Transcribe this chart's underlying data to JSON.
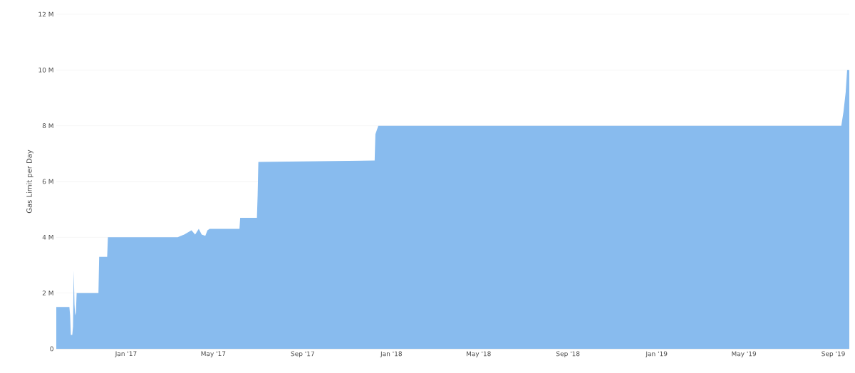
{
  "chart_data": {
    "type": "area",
    "ylabel": "Gas Limit per Day",
    "color": "#88bbee",
    "grid": "y",
    "x": [
      "2016-09-27",
      "2016-10-15",
      "2016-10-16",
      "2016-10-17",
      "2016-10-19",
      "2016-10-20",
      "2016-10-21",
      "2016-10-22",
      "2016-10-23",
      "2016-10-24",
      "2016-10-25",
      "2016-11-24",
      "2016-11-25",
      "2016-12-06",
      "2016-12-07",
      "2017-03-13",
      "2017-03-22",
      "2017-04-01",
      "2017-04-06",
      "2017-04-11",
      "2017-04-15",
      "2017-04-20",
      "2017-04-23",
      "2017-04-26",
      "2017-06-06",
      "2017-06-07",
      "2017-06-30",
      "2017-07-01",
      "2017-07-02",
      "2017-12-09",
      "2017-12-10",
      "2017-12-14",
      "2019-09-12",
      "2019-09-15",
      "2019-09-18",
      "2019-09-20",
      "2019-09-23"
    ],
    "values": [
      1500000,
      1500000,
      1200000,
      500000,
      500000,
      800000,
      2800000,
      1600000,
      1200000,
      1300000,
      2000000,
      2000000,
      3300000,
      3300000,
      4000000,
      4000000,
      4100000,
      4250000,
      4100000,
      4300000,
      4100000,
      4050000,
      4250000,
      4300000,
      4300000,
      4700000,
      4700000,
      5500000,
      6700000,
      6750000,
      7700000,
      8000000,
      8000000,
      8500000,
      9200000,
      10000000,
      10000000
    ],
    "xlim": [
      "2016-09-27",
      "2019-09-23"
    ],
    "xticks": [
      {
        "value": "2017-01-01",
        "label": "Jan '17"
      },
      {
        "value": "2017-05-01",
        "label": "May '17"
      },
      {
        "value": "2017-09-01",
        "label": "Sep '17"
      },
      {
        "value": "2018-01-01",
        "label": "Jan '18"
      },
      {
        "value": "2018-05-01",
        "label": "May '18"
      },
      {
        "value": "2018-09-01",
        "label": "Sep '18"
      },
      {
        "value": "2019-01-01",
        "label": "Jan '19"
      },
      {
        "value": "2019-05-01",
        "label": "May '19"
      },
      {
        "value": "2019-09-01",
        "label": "Sep '19"
      }
    ],
    "ylim": [
      0,
      12000000
    ],
    "yticks": [
      0,
      {
        "value": 2000000,
        "label": "2 M"
      },
      {
        "value": 4000000,
        "label": "4 M"
      },
      {
        "value": 6000000,
        "label": "6 M"
      },
      {
        "value": 8000000,
        "label": "8 M"
      },
      {
        "value": 10000000,
        "label": "10 M"
      },
      {
        "value": 12000000,
        "label": "12 M"
      }
    ]
  }
}
